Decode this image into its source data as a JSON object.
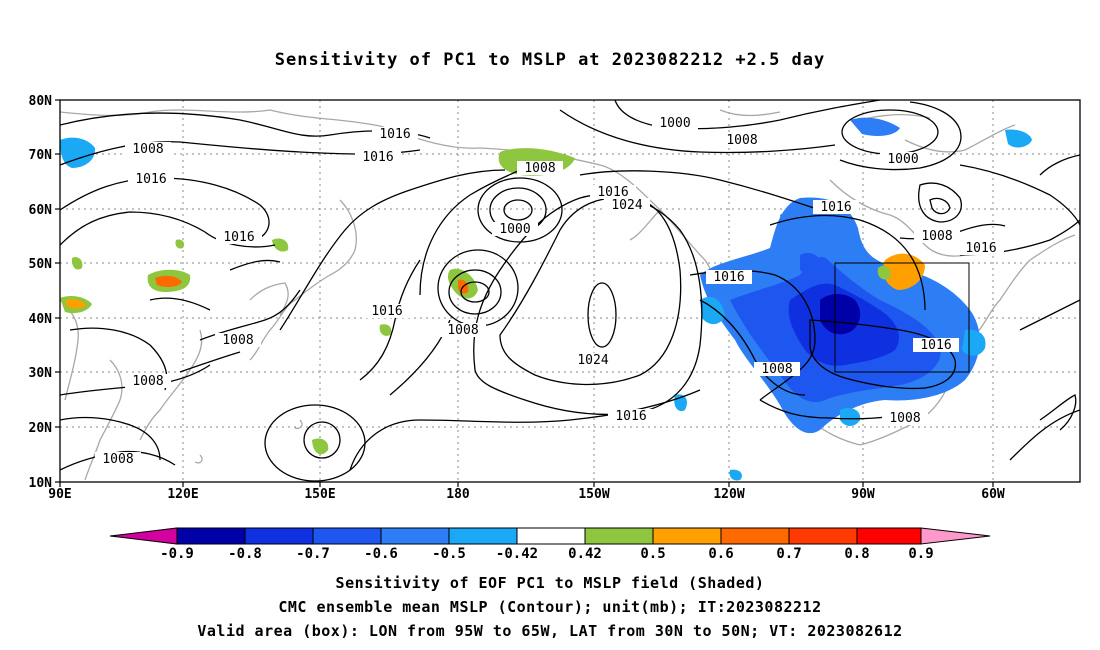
{
  "title": "Sensitivity of PC1 to MSLP at 2023082212 +2.5 day",
  "lat_labels": [
    "80N",
    "70N",
    "60N",
    "50N",
    "40N",
    "30N",
    "20N",
    "10N"
  ],
  "lon_labels": [
    "90E",
    "120E",
    "150E",
    "180",
    "150W",
    "120W",
    "90W",
    "60W"
  ],
  "contour_labels": [
    {
      "id": "c1",
      "text": "1016"
    },
    {
      "id": "c2",
      "text": "1016"
    },
    {
      "id": "c3",
      "text": "1008"
    },
    {
      "id": "c4",
      "text": "1016"
    },
    {
      "id": "c5",
      "text": "1008"
    },
    {
      "id": "c6",
      "text": "1016"
    },
    {
      "id": "c7",
      "text": "1016"
    },
    {
      "id": "c8",
      "text": "1008"
    },
    {
      "id": "c9",
      "text": "1008"
    },
    {
      "id": "c10",
      "text": "1008"
    },
    {
      "id": "c11",
      "text": "1000"
    },
    {
      "id": "c12",
      "text": "1016"
    },
    {
      "id": "c13",
      "text": "1024"
    },
    {
      "id": "c14",
      "text": "1008"
    },
    {
      "id": "c15",
      "text": "1024"
    },
    {
      "id": "c16",
      "text": "1016"
    },
    {
      "id": "c17",
      "text": "1000"
    },
    {
      "id": "c18",
      "text": "1008"
    },
    {
      "id": "c19",
      "text": "1000"
    },
    {
      "id": "c20",
      "text": "1016"
    },
    {
      "id": "c21",
      "text": "1008"
    },
    {
      "id": "c22",
      "text": "1016"
    },
    {
      "id": "c23",
      "text": "1016"
    },
    {
      "id": "c24",
      "text": "1008"
    },
    {
      "id": "c25",
      "text": "1016"
    },
    {
      "id": "c26",
      "text": "1008"
    }
  ],
  "valid_box": {
    "lon_range": "95W to 65W",
    "lat_range": "30N to 50N"
  },
  "colorbar": {
    "labels": [
      "-0.9",
      "-0.8",
      "-0.7",
      "-0.6",
      "-0.5",
      "-0.42",
      "0.42",
      "0.5",
      "0.6",
      "0.7",
      "0.8",
      "0.9"
    ],
    "colors": [
      "#0000a8",
      "#0f30e0",
      "#1e56f0",
      "#2d7ef5",
      "#1ba8f5",
      "#ffffff",
      "#8ec63f",
      "#ffa000",
      "#ff6a00",
      "#ff3a00",
      "#ff0000"
    ],
    "low_end_color": "#d400a0",
    "high_end_color": "#ff99cc"
  },
  "captions": {
    "line1": "Sensitivity of EOF PC1 to MSLP field (Shaded)",
    "line2": "CMC ensemble mean MSLP (Contour); unit(mb); IT:2023082212",
    "line3": "Valid area (box): LON from 95W to 65W, LAT from 30N to 50N; VT: 2023082612"
  }
}
